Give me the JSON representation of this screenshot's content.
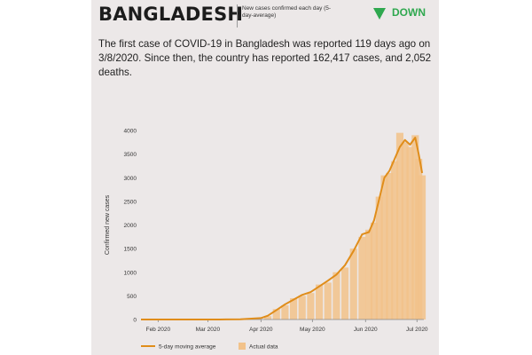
{
  "header": {
    "country": "BANGLADESH",
    "subtitle": "New cases confirmed each day (5-day-average)",
    "trend_label": "DOWN",
    "trend_icon": "down-triangle-icon",
    "trend_color": "#2fa84f"
  },
  "intro_text": "The first case of COVID-19 in Bangladesh was reported 119 days ago on 3/8/2020. Since then, the country has reported 162,417 cases, and 2,052 deaths.",
  "colors": {
    "line": "#e08d1a",
    "bars": "#f2c28a",
    "background": "#ece8e8"
  },
  "chart_data": {
    "type": "line",
    "ylabel": "Confirmed new cases",
    "xlabel": "",
    "ylim": [
      0,
      4000
    ],
    "yticks": [
      0,
      500,
      1000,
      1500,
      2000,
      2500,
      3000,
      3500,
      4000
    ],
    "xticks": [
      {
        "date": "2020-02-01",
        "label": "Feb 2020"
      },
      {
        "date": "2020-03-01",
        "label": "Mar 2020"
      },
      {
        "date": "2020-04-01",
        "label": "Apr 2020"
      },
      {
        "date": "2020-05-01",
        "label": "May 2020"
      },
      {
        "date": "2020-06-01",
        "label": "Jun 2020"
      },
      {
        "date": "2020-07-01",
        "label": "Jul 2020"
      }
    ],
    "xlim": [
      "2020-01-22",
      "2020-07-05"
    ],
    "legend": [
      "5-day moving average",
      "Actual data"
    ],
    "legend_position": "bottom",
    "series": [
      {
        "name": "5-day moving average",
        "kind": "line",
        "x": [
          "2020-01-22",
          "2020-03-08",
          "2020-03-20",
          "2020-04-01",
          "2020-04-05",
          "2020-04-10",
          "2020-04-15",
          "2020-04-20",
          "2020-04-25",
          "2020-04-30",
          "2020-05-05",
          "2020-05-10",
          "2020-05-15",
          "2020-05-20",
          "2020-05-25",
          "2020-05-30",
          "2020-06-03",
          "2020-06-06",
          "2020-06-09",
          "2020-06-12",
          "2020-06-15",
          "2020-06-18",
          "2020-06-21",
          "2020-06-24",
          "2020-06-27",
          "2020-06-30",
          "2020-07-02",
          "2020-07-04"
        ],
        "values": [
          0,
          0,
          5,
          30,
          80,
          200,
          320,
          420,
          520,
          580,
          700,
          820,
          950,
          1150,
          1450,
          1800,
          1850,
          2100,
          2550,
          3000,
          3150,
          3400,
          3650,
          3800,
          3700,
          3850,
          3500,
          3100
        ]
      },
      {
        "name": "Actual data",
        "kind": "bar",
        "x": [
          "2020-04-05",
          "2020-04-10",
          "2020-04-15",
          "2020-04-20",
          "2020-04-25",
          "2020-04-30",
          "2020-05-05",
          "2020-05-10",
          "2020-05-15",
          "2020-05-20",
          "2020-05-25",
          "2020-05-30",
          "2020-06-03",
          "2020-06-06",
          "2020-06-09",
          "2020-06-12",
          "2020-06-15",
          "2020-06-18",
          "2020-06-21",
          "2020-06-24",
          "2020-06-27",
          "2020-06-30",
          "2020-07-02",
          "2020-07-04"
        ],
        "values": [
          70,
          220,
          300,
          450,
          500,
          560,
          740,
          780,
          1000,
          1100,
          1500,
          1750,
          1900,
          2050,
          2600,
          3050,
          3100,
          3350,
          3950,
          3750,
          3650,
          3900,
          3400,
          3050
        ]
      }
    ]
  }
}
